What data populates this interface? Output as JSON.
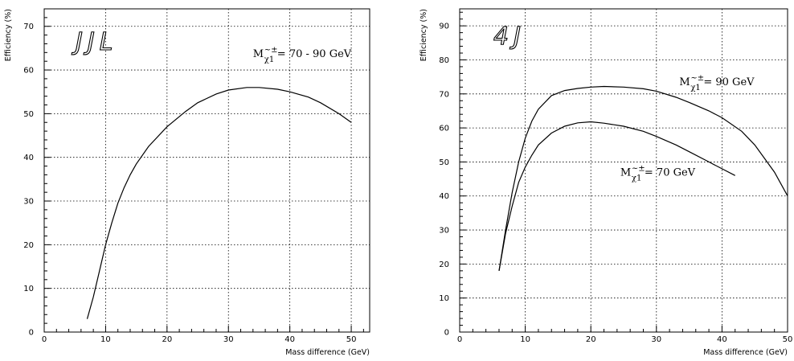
{
  "chart_data": [
    {
      "type": "line",
      "badge": "JJL",
      "xlabel": "Mass difference (GeV)",
      "ylabel": "Efficiency (%)",
      "xlim": [
        0,
        53
      ],
      "ylim": [
        0,
        74
      ],
      "xticks": [
        0,
        10,
        20,
        30,
        40,
        50
      ],
      "yticks": [
        0,
        10,
        20,
        30,
        40,
        50,
        60,
        70
      ],
      "grid": true,
      "series": [
        {
          "x": [
            7,
            8,
            9,
            10,
            11,
            12,
            13,
            14,
            15,
            17,
            20,
            23,
            25,
            28,
            30,
            33,
            35,
            38,
            40,
            43,
            45,
            48,
            50
          ],
          "y": [
            3,
            8,
            14,
            20,
            25,
            29.5,
            33,
            36,
            38.5,
            42.5,
            47,
            50.5,
            52.5,
            54.5,
            55.4,
            56,
            56,
            55.6,
            55,
            53.8,
            52.5,
            50,
            48
          ],
          "annotation": {
            "label": "M",
            "symbol": "~±",
            "subscript": "χ1",
            "value": "= 70 - 90 GeV",
            "at": [
              34,
              63
            ]
          }
        }
      ]
    },
    {
      "type": "line",
      "badge": "4J",
      "xlabel": "Mass difference (GeV)",
      "ylabel": "Efficiency (%)",
      "xlim": [
        0,
        50
      ],
      "ylim": [
        0,
        95
      ],
      "xticks": [
        0,
        10,
        20,
        30,
        40,
        50
      ],
      "yticks": [
        0,
        10,
        20,
        30,
        40,
        50,
        60,
        70,
        80,
        90
      ],
      "grid": true,
      "series": [
        {
          "x": [
            6,
            7,
            8,
            9,
            10,
            11,
            12,
            14,
            16,
            18,
            20,
            22,
            25,
            28,
            30,
            33,
            35,
            38,
            40,
            43,
            45,
            48,
            50
          ],
          "y": [
            18,
            30,
            41,
            50,
            57,
            62,
            65.5,
            69.5,
            71,
            71.6,
            72,
            72.2,
            72,
            71.5,
            70.8,
            69,
            67.5,
            65,
            63,
            59,
            55,
            47,
            40
          ],
          "annotation": {
            "label": "M",
            "symbol": "~±",
            "subscript": "χ1",
            "value": "= 90 GeV",
            "at": [
              33.5,
              72.5
            ]
          }
        },
        {
          "x": [
            6,
            7,
            8,
            9,
            10,
            11,
            12,
            14,
            16,
            18,
            20,
            22,
            25,
            28,
            30,
            33,
            35,
            38,
            40,
            42
          ],
          "y": [
            18,
            29,
            37,
            44,
            48.5,
            52,
            55,
            58.5,
            60.5,
            61.5,
            61.8,
            61.4,
            60.5,
            59,
            57.5,
            55,
            53,
            50,
            48,
            46
          ],
          "annotation": {
            "label": "M",
            "symbol": "~±",
            "subscript": "χ1",
            "value": "= 70 GeV",
            "at": [
              24.5,
              46
            ]
          }
        }
      ]
    }
  ]
}
